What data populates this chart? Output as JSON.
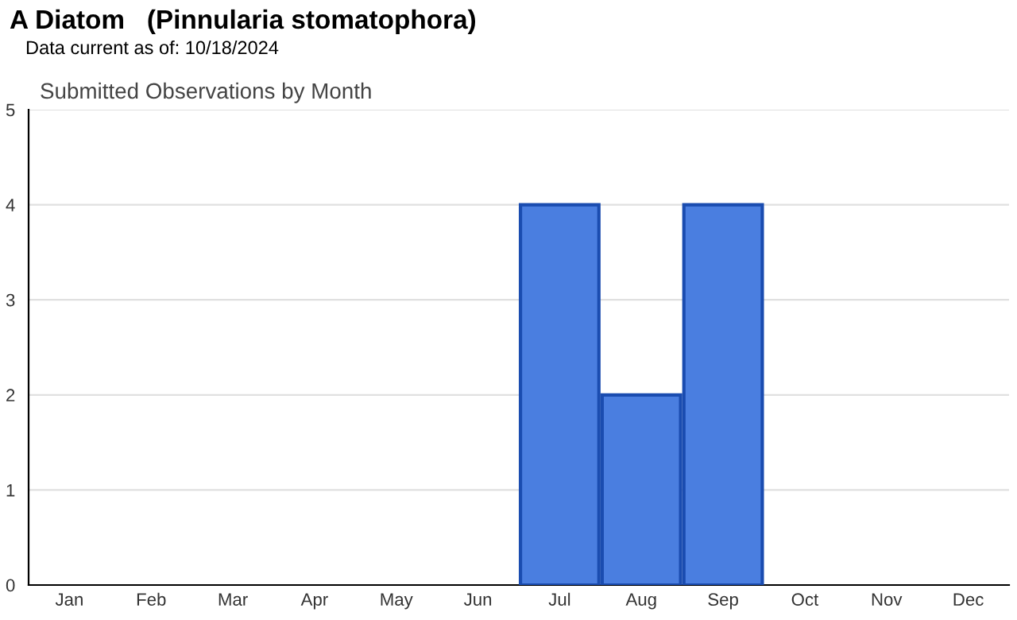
{
  "chart_data": {
    "type": "bar",
    "title": "A Diatom   (Pinnularia stomatophora)",
    "subtitle": "Data current as of: 10/18/2024",
    "annotations": [
      "Submitted Observations by Month"
    ],
    "categories": [
      "Jan",
      "Feb",
      "Mar",
      "Apr",
      "May",
      "Jun",
      "Jul",
      "Aug",
      "Sep",
      "Oct",
      "Nov",
      "Dec"
    ],
    "values": [
      0,
      0,
      0,
      0,
      0,
      0,
      4,
      2,
      4,
      0,
      0,
      0
    ],
    "color": "#4a7ee0",
    "ylim": [
      0,
      5
    ],
    "yticks": [
      0,
      1,
      2,
      3,
      4,
      5
    ],
    "grid": "y"
  }
}
